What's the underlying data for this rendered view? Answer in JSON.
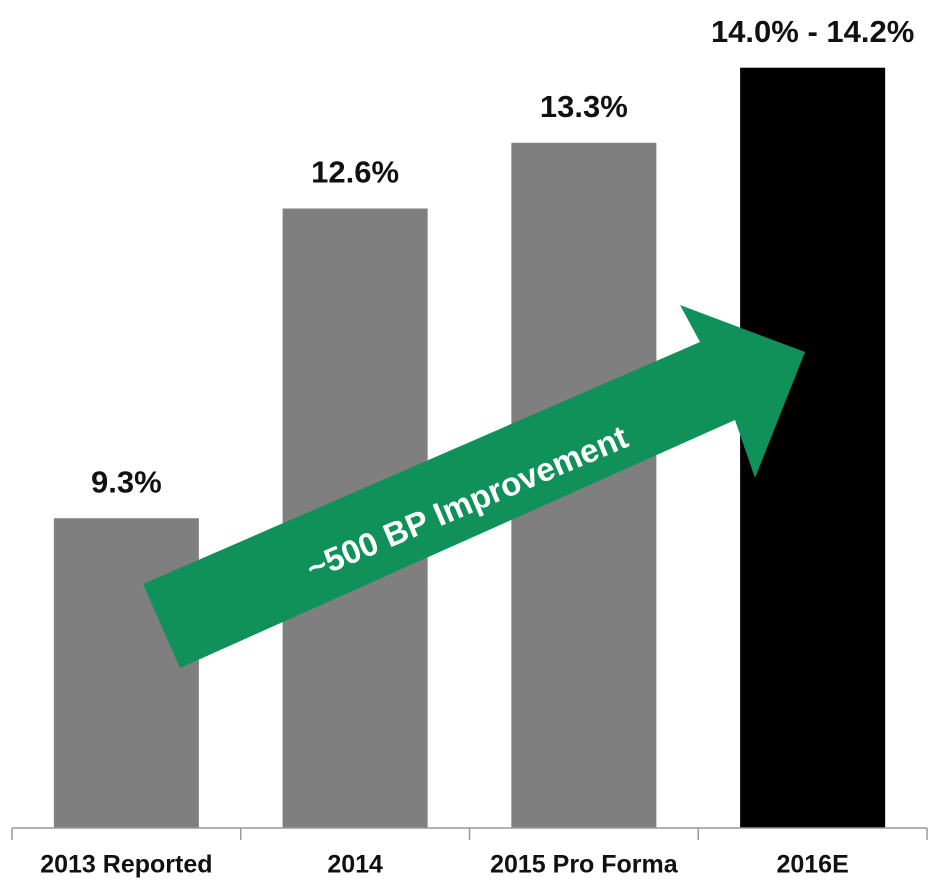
{
  "chart_data": {
    "type": "bar",
    "categories": [
      "2013 Reported",
      "2014",
      "2015 Pro Forma",
      "2016E"
    ],
    "values": [
      9.3,
      12.6,
      13.3,
      14.1
    ],
    "value_labels": [
      "9.3%",
      "12.6%",
      "13.3%",
      "14.0% - 14.2%"
    ],
    "colors": [
      "#7f7f7f",
      "#7f7f7f",
      "#7f7f7f",
      "#000000"
    ],
    "ylim": [
      6,
      14.8
    ],
    "annotation": "~500 BP Improvement",
    "annotation_color": "#10915a"
  }
}
